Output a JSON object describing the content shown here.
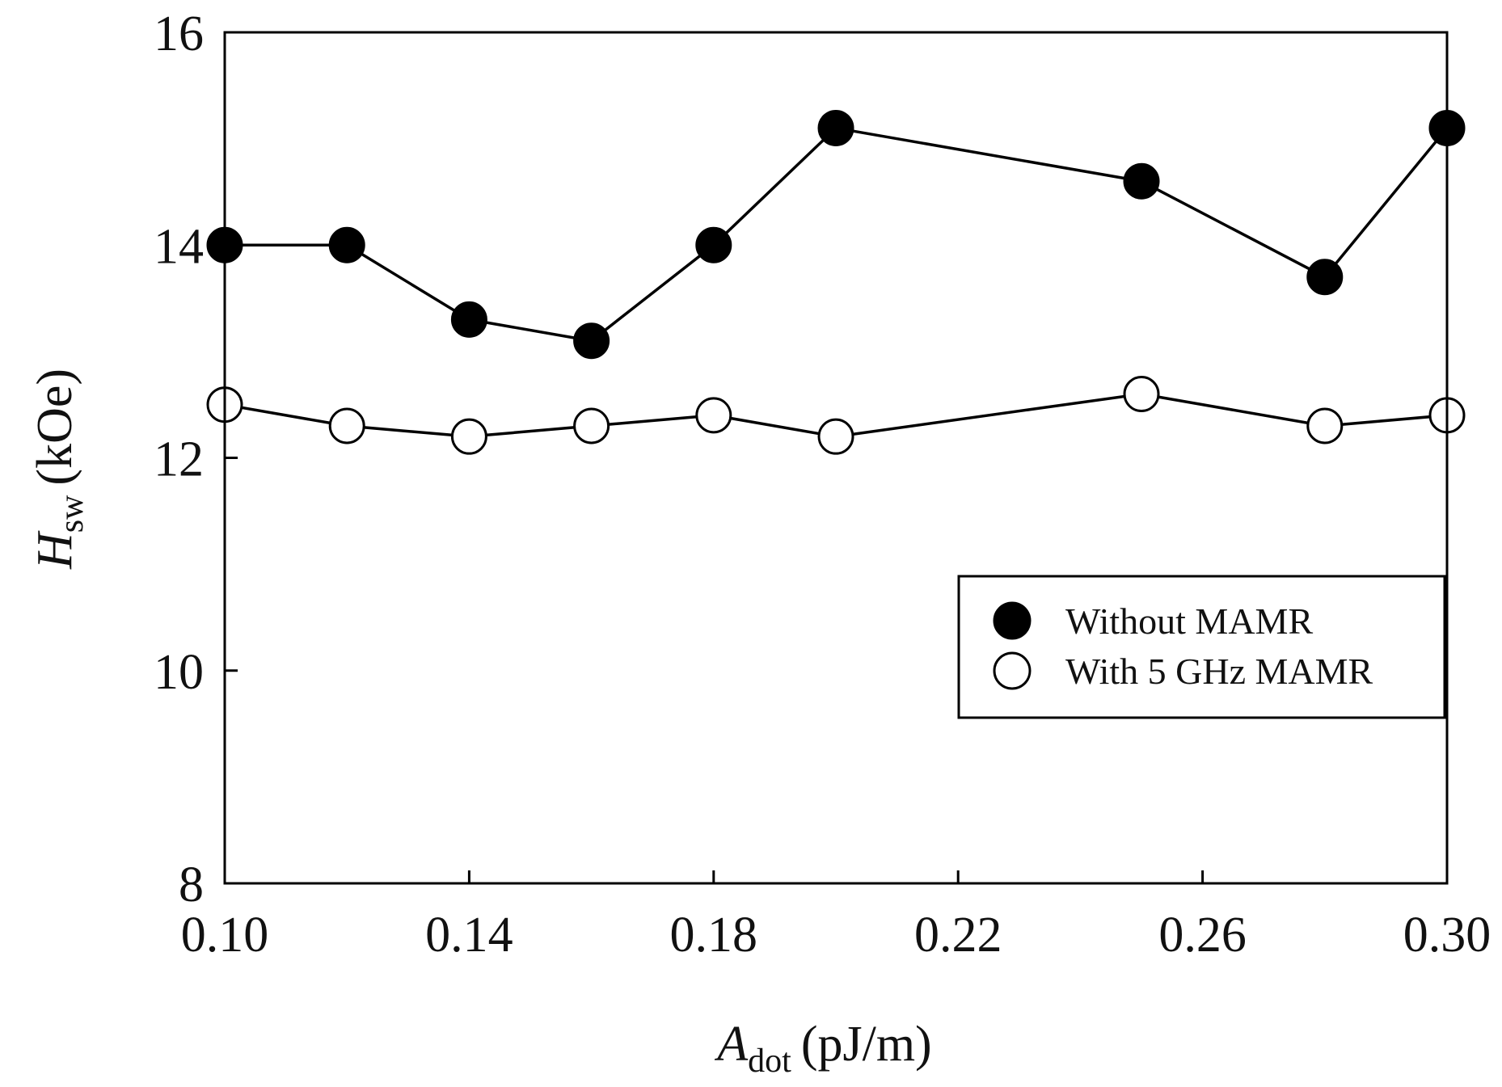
{
  "chart_data": {
    "type": "line",
    "title": "",
    "xlabel": {
      "main": "A",
      "sub": "dot",
      "unit": "(pJ/m)"
    },
    "ylabel": {
      "main": "H",
      "sub": "sw",
      "unit": "(kOe)"
    },
    "xlim": [
      0.1,
      0.3
    ],
    "ylim": [
      8,
      16
    ],
    "xticks": [
      0.1,
      0.14,
      0.18,
      0.22,
      0.26,
      0.3
    ],
    "xtick_labels": [
      "0.10",
      "0.14",
      "0.18",
      "0.22",
      "0.26",
      "0.30"
    ],
    "yticks": [
      8,
      10,
      12,
      14,
      16
    ],
    "ytick_labels": [
      "8",
      "10",
      "12",
      "14",
      "16"
    ],
    "grid": false,
    "legend_position": "right-middle",
    "series": [
      {
        "name": "Without MAMR",
        "marker": "filled-circle",
        "color": "#000000",
        "x": [
          0.1,
          0.12,
          0.14,
          0.16,
          0.18,
          0.2,
          0.25,
          0.28,
          0.3
        ],
        "y": [
          14.0,
          14.0,
          13.3,
          13.1,
          14.0,
          15.1,
          14.6,
          13.7,
          15.1
        ]
      },
      {
        "name": "With 5 GHz MAMR",
        "marker": "open-circle",
        "color": "#000000",
        "x": [
          0.1,
          0.12,
          0.14,
          0.16,
          0.18,
          0.2,
          0.25,
          0.28,
          0.3
        ],
        "y": [
          12.5,
          12.3,
          12.2,
          12.3,
          12.4,
          12.2,
          12.6,
          12.3,
          12.4
        ]
      }
    ]
  }
}
